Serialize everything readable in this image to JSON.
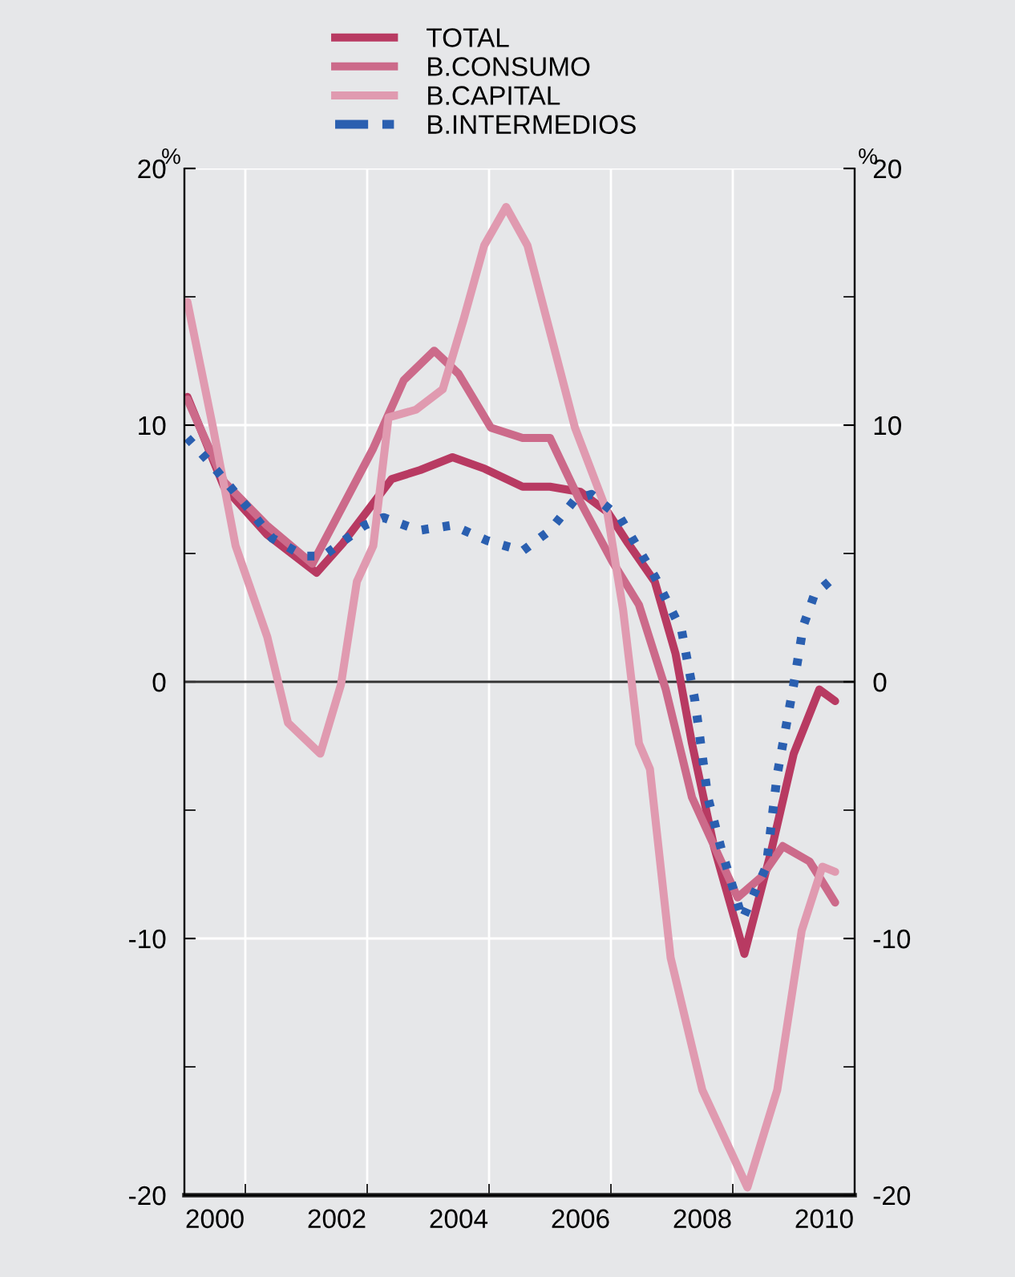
{
  "chart_data": {
    "type": "line",
    "ylabel": "%",
    "y2label": "%",
    "xlim": [
      2000,
      2011
    ],
    "xticks": [
      {
        "value": 2001,
        "label": null
      },
      {
        "value": 2003,
        "label": null
      },
      {
        "value": 2005,
        "label": null
      },
      {
        "value": 2007,
        "label": null
      },
      {
        "value": 2009,
        "label": null
      },
      {
        "value": 2000.5,
        "label": "2000"
      },
      {
        "value": 2002.5,
        "label": "2002"
      },
      {
        "value": 2004.5,
        "label": "2004"
      },
      {
        "value": 2006.5,
        "label": "2006"
      },
      {
        "value": 2008.5,
        "label": "2008"
      },
      {
        "value": 2010.5,
        "label": "2010"
      }
    ],
    "ylim": [
      -20,
      20
    ],
    "yticks": [
      -20,
      {
        "value": -15,
        "label": null
      },
      -10,
      {
        "value": -5,
        "label": null
      },
      0,
      {
        "value": 5,
        "label": null
      },
      10,
      {
        "value": 15,
        "label": null
      },
      20
    ],
    "y2lim": [
      -20,
      20
    ],
    "y2ticks": [
      -20,
      {
        "value": -15,
        "label": null
      },
      -10,
      {
        "value": -5,
        "label": null
      },
      0,
      {
        "value": 5,
        "label": null
      },
      10,
      {
        "value": 15,
        "label": null
      },
      20
    ],
    "grid": true,
    "legend": "top",
    "marker": "none",
    "ref_lines": [
      {
        "axis": "y",
        "value": 0,
        "label": null,
        "color": "#333333"
      }
    ],
    "series": [
      {
        "name": "TOTAL",
        "color": "#b83a62",
        "line_style": "solid",
        "x": [
          2000.05,
          2000.65,
          2001.35,
          2002.17,
          2002.6,
          2003.4,
          2003.87,
          2004.4,
          2004.93,
          2005.55,
          2006.0,
          2006.5,
          2006.95,
          2007.28,
          2007.72,
          2008.06,
          2008.33,
          2008.69,
          2009.19,
          2009.63,
          2010.0,
          2010.42,
          2010.68
        ],
        "values": [
          11.1,
          7.6,
          5.75,
          4.25,
          5.4,
          7.9,
          8.25,
          8.75,
          8.3,
          7.6,
          7.6,
          7.4,
          6.6,
          5.4,
          3.9,
          1.1,
          -2.4,
          -6.4,
          -10.6,
          -6.6,
          -2.8,
          -0.3,
          -0.75
        ]
      },
      {
        "name": "B.CONSUMO",
        "color": "#cc6a8a",
        "line_style": "solid",
        "x": [
          2000.05,
          2000.65,
          2001.35,
          2002.1,
          2003.1,
          2003.6,
          2004.1,
          2004.5,
          2005.03,
          2005.55,
          2006.0,
          2006.5,
          2007.02,
          2007.46,
          2007.9,
          2008.33,
          2009.08,
          2009.47,
          2009.82,
          2010.26,
          2010.42,
          2010.68
        ],
        "values": [
          11.0,
          7.8,
          6.1,
          4.6,
          9.1,
          11.75,
          12.9,
          12.0,
          9.9,
          9.5,
          9.5,
          7.0,
          4.7,
          3.0,
          -0.3,
          -4.5,
          -8.4,
          -7.6,
          -6.4,
          -7.0,
          -7.6,
          -8.6
        ]
      },
      {
        "name": "B.CAPITAL",
        "color": "#e09ab0",
        "line_style": "solid",
        "x": [
          2000.05,
          2000.47,
          2000.84,
          2001.36,
          2001.7,
          2002.23,
          2002.57,
          2002.83,
          2003.1,
          2003.35,
          2003.8,
          2004.24,
          2004.58,
          2004.92,
          2005.28,
          2005.63,
          2006.07,
          2006.41,
          2006.94,
          2007.2,
          2007.46,
          2007.64,
          2007.98,
          2008.5,
          2009.24,
          2009.73,
          2010.13,
          2010.47,
          2010.68
        ],
        "values": [
          14.8,
          9.9,
          5.3,
          1.75,
          -1.6,
          -2.8,
          -0.1,
          3.9,
          5.3,
          10.3,
          10.6,
          11.4,
          14.1,
          17.0,
          18.5,
          17.0,
          13.0,
          9.9,
          6.6,
          2.8,
          -2.4,
          -3.4,
          -10.75,
          -15.9,
          -19.7,
          -15.9,
          -9.7,
          -7.2,
          -7.4
        ]
      },
      {
        "name": "B.INTERMEDIOS",
        "color": "#2a5fb0",
        "line_style": "dotted",
        "x": [
          2000.05,
          2000.47,
          2001.05,
          2001.44,
          2001.96,
          2002.28,
          2002.96,
          2003.27,
          2003.85,
          2004.4,
          2004.97,
          2005.55,
          2006.0,
          2006.41,
          2006.68,
          2007.15,
          2007.72,
          2008.16,
          2008.38,
          2008.59,
          2008.82,
          2009.16,
          2009.55,
          2009.73,
          2010.0,
          2010.16,
          2010.34,
          2010.58
        ],
        "values": [
          9.5,
          8.4,
          6.75,
          5.6,
          4.9,
          4.9,
          6.1,
          6.4,
          5.9,
          6.1,
          5.5,
          5.1,
          5.9,
          7.1,
          7.3,
          6.4,
          4.1,
          2.0,
          -0.75,
          -4.5,
          -6.6,
          -9.25,
          -7.2,
          -3.6,
          -0.1,
          2.2,
          3.4,
          3.9
        ]
      }
    ]
  }
}
